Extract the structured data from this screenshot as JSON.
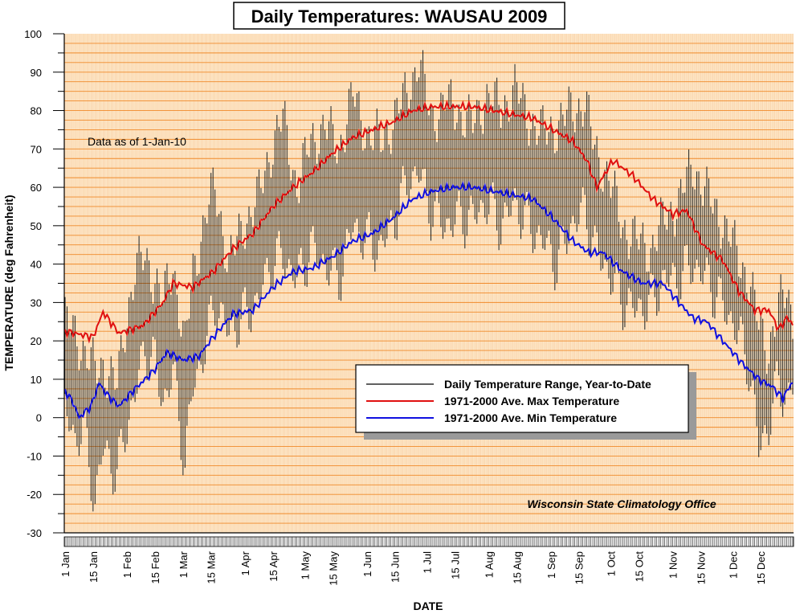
{
  "chart_data": {
    "type": "line",
    "title": "Daily Temperatures: WAUSAU 2009",
    "xlabel": "DATE",
    "ylabel": "TEMPERATURE (deg Fahrenheit)",
    "ylim": [
      -30,
      100
    ],
    "yticks": [
      -30,
      -20,
      -10,
      0,
      10,
      20,
      30,
      40,
      50,
      60,
      70,
      80,
      90,
      100
    ],
    "xlim_days": [
      1,
      365
    ],
    "xticks": [
      {
        "label": "1 Jan",
        "day": 1
      },
      {
        "label": "15 Jan",
        "day": 15
      },
      {
        "label": "1 Feb",
        "day": 32
      },
      {
        "label": "15 Feb",
        "day": 46
      },
      {
        "label": "1 Mar",
        "day": 60
      },
      {
        "label": "15 Mar",
        "day": 74
      },
      {
        "label": "1 Apr",
        "day": 91
      },
      {
        "label": "15 Apr",
        "day": 105
      },
      {
        "label": "1 May",
        "day": 121
      },
      {
        "label": "15 May",
        "day": 135
      },
      {
        "label": "1 Jun",
        "day": 152
      },
      {
        "label": "15 Jun",
        "day": 166
      },
      {
        "label": "1 Jul",
        "day": 182
      },
      {
        "label": "15 Jul",
        "day": 196
      },
      {
        "label": "1 Aug",
        "day": 213
      },
      {
        "label": "15 Aug",
        "day": 227
      },
      {
        "label": "1 Sep",
        "day": 244
      },
      {
        "label": "15 Sep",
        "day": 258
      },
      {
        "label": "1 Oct",
        "day": 274
      },
      {
        "label": "15 Oct",
        "day": 288
      },
      {
        "label": "1 Nov",
        "day": 305
      },
      {
        "label": "15 Nov",
        "day": 319
      },
      {
        "label": "1 Dec",
        "day": 335
      },
      {
        "label": "15 Dec",
        "day": 349
      }
    ],
    "note": "Data as of 1-Jan-10",
    "credit": "Wisconsin State Climatology Office",
    "legend_position": "lower-right",
    "grid": true,
    "series": [
      {
        "name": "Daily Temperature Range, Year-to-Date",
        "type": "range",
        "color": "#000000",
        "anchors": [
          {
            "day": 1,
            "high": 25,
            "low": 2
          },
          {
            "day": 6,
            "high": 22,
            "low": -6
          },
          {
            "day": 10,
            "high": 18,
            "low": -2
          },
          {
            "day": 16,
            "high": 12,
            "low": -22
          },
          {
            "day": 20,
            "high": 14,
            "low": -8
          },
          {
            "day": 27,
            "high": 8,
            "low": -15
          },
          {
            "day": 31,
            "high": 24,
            "low": -4
          },
          {
            "day": 36,
            "high": 38,
            "low": 6
          },
          {
            "day": 41,
            "high": 42,
            "low": 18
          },
          {
            "day": 46,
            "high": 36,
            "low": 14
          },
          {
            "day": 50,
            "high": 30,
            "low": 4
          },
          {
            "day": 55,
            "high": 40,
            "low": 12
          },
          {
            "day": 61,
            "high": 18,
            "low": -12
          },
          {
            "day": 65,
            "high": 38,
            "low": 8
          },
          {
            "day": 72,
            "high": 54,
            "low": 20
          },
          {
            "day": 76,
            "high": 60,
            "low": 30
          },
          {
            "day": 83,
            "high": 40,
            "low": 22
          },
          {
            "day": 90,
            "high": 50,
            "low": 26
          },
          {
            "day": 97,
            "high": 56,
            "low": 30
          },
          {
            "day": 104,
            "high": 70,
            "low": 40
          },
          {
            "day": 110,
            "high": 78,
            "low": 42
          },
          {
            "day": 117,
            "high": 60,
            "low": 36
          },
          {
            "day": 124,
            "high": 72,
            "low": 44
          },
          {
            "day": 131,
            "high": 76,
            "low": 40
          },
          {
            "day": 138,
            "high": 70,
            "low": 36
          },
          {
            "day": 145,
            "high": 84,
            "low": 50
          },
          {
            "day": 152,
            "high": 74,
            "low": 46
          },
          {
            "day": 159,
            "high": 72,
            "low": 44
          },
          {
            "day": 166,
            "high": 78,
            "low": 52
          },
          {
            "day": 173,
            "high": 86,
            "low": 62
          },
          {
            "day": 178,
            "high": 93,
            "low": 64
          },
          {
            "day": 184,
            "high": 78,
            "low": 54
          },
          {
            "day": 191,
            "high": 82,
            "low": 50
          },
          {
            "day": 198,
            "high": 80,
            "low": 52
          },
          {
            "day": 205,
            "high": 76,
            "low": 52
          },
          {
            "day": 212,
            "high": 84,
            "low": 56
          },
          {
            "day": 219,
            "high": 80,
            "low": 50
          },
          {
            "day": 226,
            "high": 86,
            "low": 56
          },
          {
            "day": 233,
            "high": 78,
            "low": 50
          },
          {
            "day": 240,
            "high": 74,
            "low": 46
          },
          {
            "day": 247,
            "high": 76,
            "low": 40
          },
          {
            "day": 254,
            "high": 80,
            "low": 50
          },
          {
            "day": 261,
            "high": 82,
            "low": 54
          },
          {
            "day": 266,
            "high": 70,
            "low": 44
          },
          {
            "day": 273,
            "high": 62,
            "low": 38
          },
          {
            "day": 280,
            "high": 50,
            "low": 30
          },
          {
            "day": 287,
            "high": 46,
            "low": 28
          },
          {
            "day": 294,
            "high": 44,
            "low": 30
          },
          {
            "day": 301,
            "high": 52,
            "low": 36
          },
          {
            "day": 308,
            "high": 56,
            "low": 36
          },
          {
            "day": 315,
            "high": 66,
            "low": 40
          },
          {
            "day": 322,
            "high": 58,
            "low": 36
          },
          {
            "day": 329,
            "high": 52,
            "low": 30
          },
          {
            "day": 336,
            "high": 44,
            "low": 24
          },
          {
            "day": 343,
            "high": 36,
            "low": 14
          },
          {
            "day": 348,
            "high": 24,
            "low": -8
          },
          {
            "day": 353,
            "high": 18,
            "low": -2
          },
          {
            "day": 358,
            "high": 28,
            "low": 10
          },
          {
            "day": 362,
            "high": 34,
            "low": 4
          },
          {
            "day": 365,
            "high": 26,
            "low": 8
          }
        ]
      },
      {
        "name": "1971-2000 Ave. Max Temperature",
        "type": "line",
        "color": "#e01010",
        "anchors": [
          {
            "day": 1,
            "value": 22.5
          },
          {
            "day": 15,
            "value": 21
          },
          {
            "day": 20,
            "value": 27.5
          },
          {
            "day": 28,
            "value": 22
          },
          {
            "day": 40,
            "value": 24
          },
          {
            "day": 50,
            "value": 30
          },
          {
            "day": 55,
            "value": 35
          },
          {
            "day": 65,
            "value": 34
          },
          {
            "day": 75,
            "value": 38
          },
          {
            "day": 85,
            "value": 44
          },
          {
            "day": 95,
            "value": 48
          },
          {
            "day": 105,
            "value": 55
          },
          {
            "day": 115,
            "value": 60
          },
          {
            "day": 125,
            "value": 64
          },
          {
            "day": 135,
            "value": 69
          },
          {
            "day": 145,
            "value": 73
          },
          {
            "day": 155,
            "value": 75
          },
          {
            "day": 165,
            "value": 77
          },
          {
            "day": 175,
            "value": 80
          },
          {
            "day": 185,
            "value": 81
          },
          {
            "day": 195,
            "value": 81
          },
          {
            "day": 205,
            "value": 81
          },
          {
            "day": 215,
            "value": 80
          },
          {
            "day": 225,
            "value": 79
          },
          {
            "day": 235,
            "value": 78
          },
          {
            "day": 245,
            "value": 75
          },
          {
            "day": 255,
            "value": 72
          },
          {
            "day": 262,
            "value": 67
          },
          {
            "day": 267,
            "value": 60
          },
          {
            "day": 275,
            "value": 67
          },
          {
            "day": 285,
            "value": 63
          },
          {
            "day": 295,
            "value": 57
          },
          {
            "day": 305,
            "value": 53
          },
          {
            "day": 312,
            "value": 54
          },
          {
            "day": 320,
            "value": 45
          },
          {
            "day": 330,
            "value": 41
          },
          {
            "day": 338,
            "value": 33
          },
          {
            "day": 346,
            "value": 28
          },
          {
            "day": 353,
            "value": 28
          },
          {
            "day": 358,
            "value": 23
          },
          {
            "day": 362,
            "value": 26
          },
          {
            "day": 365,
            "value": 24.5
          }
        ]
      },
      {
        "name": "1971-2000 Ave. Min Temperature",
        "type": "line",
        "color": "#1010e0",
        "anchors": [
          {
            "day": 1,
            "value": 7
          },
          {
            "day": 5,
            "value": 4
          },
          {
            "day": 8,
            "value": 0
          },
          {
            "day": 14,
            "value": 3
          },
          {
            "day": 18,
            "value": 9
          },
          {
            "day": 22,
            "value": 6
          },
          {
            "day": 28,
            "value": 3
          },
          {
            "day": 35,
            "value": 7
          },
          {
            "day": 45,
            "value": 12
          },
          {
            "day": 52,
            "value": 17
          },
          {
            "day": 60,
            "value": 15
          },
          {
            "day": 68,
            "value": 16
          },
          {
            "day": 75,
            "value": 21
          },
          {
            "day": 85,
            "value": 27
          },
          {
            "day": 95,
            "value": 28
          },
          {
            "day": 105,
            "value": 34
          },
          {
            "day": 115,
            "value": 38
          },
          {
            "day": 125,
            "value": 39
          },
          {
            "day": 135,
            "value": 42
          },
          {
            "day": 145,
            "value": 46
          },
          {
            "day": 155,
            "value": 48
          },
          {
            "day": 165,
            "value": 52
          },
          {
            "day": 175,
            "value": 57
          },
          {
            "day": 185,
            "value": 59
          },
          {
            "day": 195,
            "value": 60
          },
          {
            "day": 205,
            "value": 60
          },
          {
            "day": 215,
            "value": 59
          },
          {
            "day": 225,
            "value": 58
          },
          {
            "day": 235,
            "value": 57
          },
          {
            "day": 245,
            "value": 52
          },
          {
            "day": 255,
            "value": 46
          },
          {
            "day": 263,
            "value": 43
          },
          {
            "day": 270,
            "value": 43
          },
          {
            "day": 280,
            "value": 38
          },
          {
            "day": 290,
            "value": 35
          },
          {
            "day": 300,
            "value": 35
          },
          {
            "day": 308,
            "value": 30
          },
          {
            "day": 315,
            "value": 26
          },
          {
            "day": 322,
            "value": 25
          },
          {
            "day": 330,
            "value": 20
          },
          {
            "day": 340,
            "value": 14
          },
          {
            "day": 348,
            "value": 10
          },
          {
            "day": 355,
            "value": 8
          },
          {
            "day": 360,
            "value": 5
          },
          {
            "day": 365,
            "value": 9.5
          }
        ]
      }
    ]
  }
}
